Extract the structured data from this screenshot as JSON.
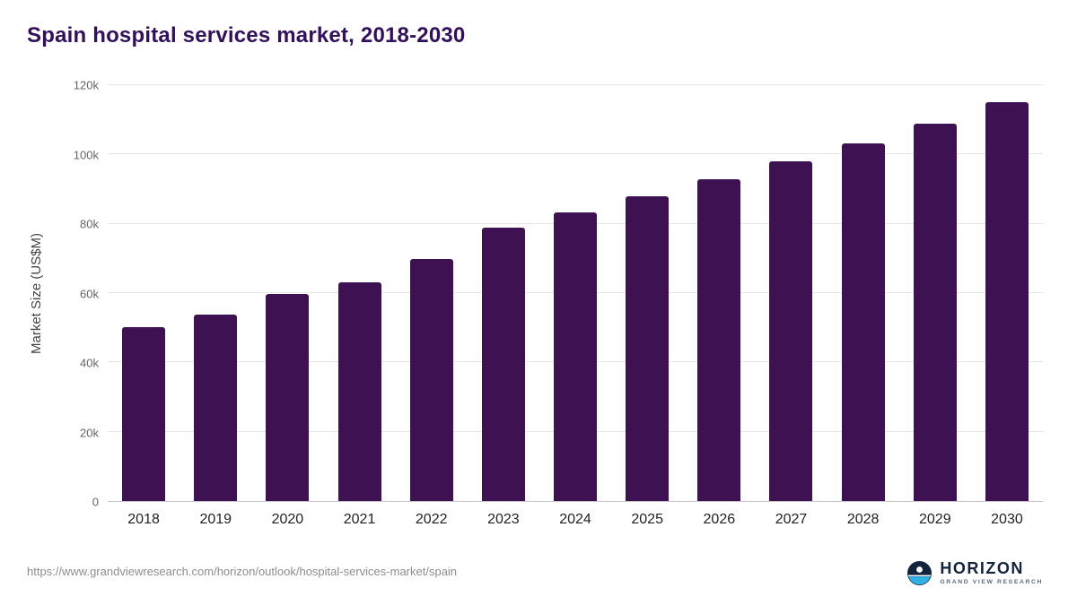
{
  "title": "Spain hospital services market, 2018-2030",
  "chart_data": {
    "type": "bar",
    "title": "Spain hospital services market, 2018-2030",
    "categories": [
      "2018",
      "2019",
      "2020",
      "2021",
      "2022",
      "2023",
      "2024",
      "2025",
      "2026",
      "2027",
      "2028",
      "2029",
      "2030"
    ],
    "values": [
      50100,
      53900,
      59800,
      63200,
      69800,
      79000,
      83200,
      88000,
      92800,
      98000,
      103300,
      109000,
      115200
    ],
    "xlabel": "",
    "ylabel": "Market Size (US$M)",
    "ylim": [
      0,
      120000
    ],
    "yticks": [
      {
        "value": 0,
        "label": "0"
      },
      {
        "value": 20000,
        "label": "20k"
      },
      {
        "value": 40000,
        "label": "40k"
      },
      {
        "value": 60000,
        "label": "60k"
      },
      {
        "value": 80000,
        "label": "80k"
      },
      {
        "value": 100000,
        "label": "100k"
      },
      {
        "value": 120000,
        "label": "120k"
      }
    ],
    "grid": true,
    "legend": "none",
    "bar_color": "#3e1152"
  },
  "colors": {
    "title": "#33105e",
    "bar": "#3e1152",
    "gridline": "#e6e6e6",
    "axis_line": "#c6c6c6",
    "logo_navy": "#14233c",
    "logo_cyan": "#2eb0e4"
  },
  "footer": {
    "source_url": "https://www.grandviewresearch.com/horizon/outlook/hospital-services-market/spain",
    "logo_title": "HORIZON",
    "logo_subtitle": "GRAND VIEW RESEARCH"
  }
}
